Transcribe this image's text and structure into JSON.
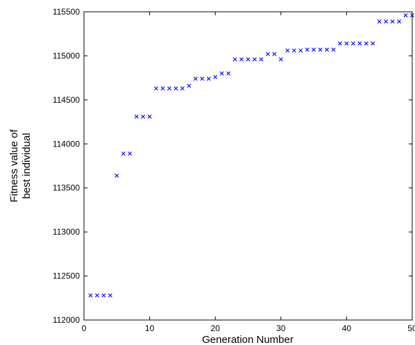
{
  "chart_data": {
    "type": "scatter",
    "title": "",
    "xlabel": "Generation Number",
    "ylabel_lines": [
      "Fitness value of",
      "best individual"
    ],
    "xlim": [
      0,
      50
    ],
    "ylim": [
      112000,
      115500
    ],
    "xticks": [
      0,
      10,
      20,
      30,
      40,
      50
    ],
    "yticks": [
      112000,
      112500,
      113000,
      113500,
      114000,
      114500,
      115000,
      115500
    ],
    "grid": false,
    "marker": "x",
    "marker_color": "#0000ff",
    "series": [
      {
        "x": [
          1,
          2,
          3,
          4,
          5,
          6,
          7,
          8,
          9,
          10,
          11,
          12,
          13,
          14,
          15,
          16,
          17,
          18,
          19,
          20,
          21,
          22,
          23,
          24,
          25,
          26,
          27,
          28,
          29,
          30,
          31,
          32,
          33,
          34,
          35,
          36,
          37,
          38,
          39,
          40,
          41,
          42,
          43,
          44,
          45,
          46,
          47,
          48,
          49,
          50
        ],
        "y": [
          112280,
          112280,
          112280,
          112280,
          113640,
          113890,
          113890,
          114310,
          114310,
          114310,
          114630,
          114630,
          114630,
          114630,
          114630,
          114660,
          114740,
          114740,
          114740,
          114760,
          114800,
          114800,
          114960,
          114960,
          114960,
          114960,
          114960,
          115020,
          115020,
          114960,
          115060,
          115060,
          115060,
          115070,
          115070,
          115070,
          115070,
          115070,
          115140,
          115140,
          115140,
          115140,
          115140,
          115140,
          115390,
          115390,
          115390,
          115390,
          115460,
          115460
        ]
      }
    ]
  }
}
